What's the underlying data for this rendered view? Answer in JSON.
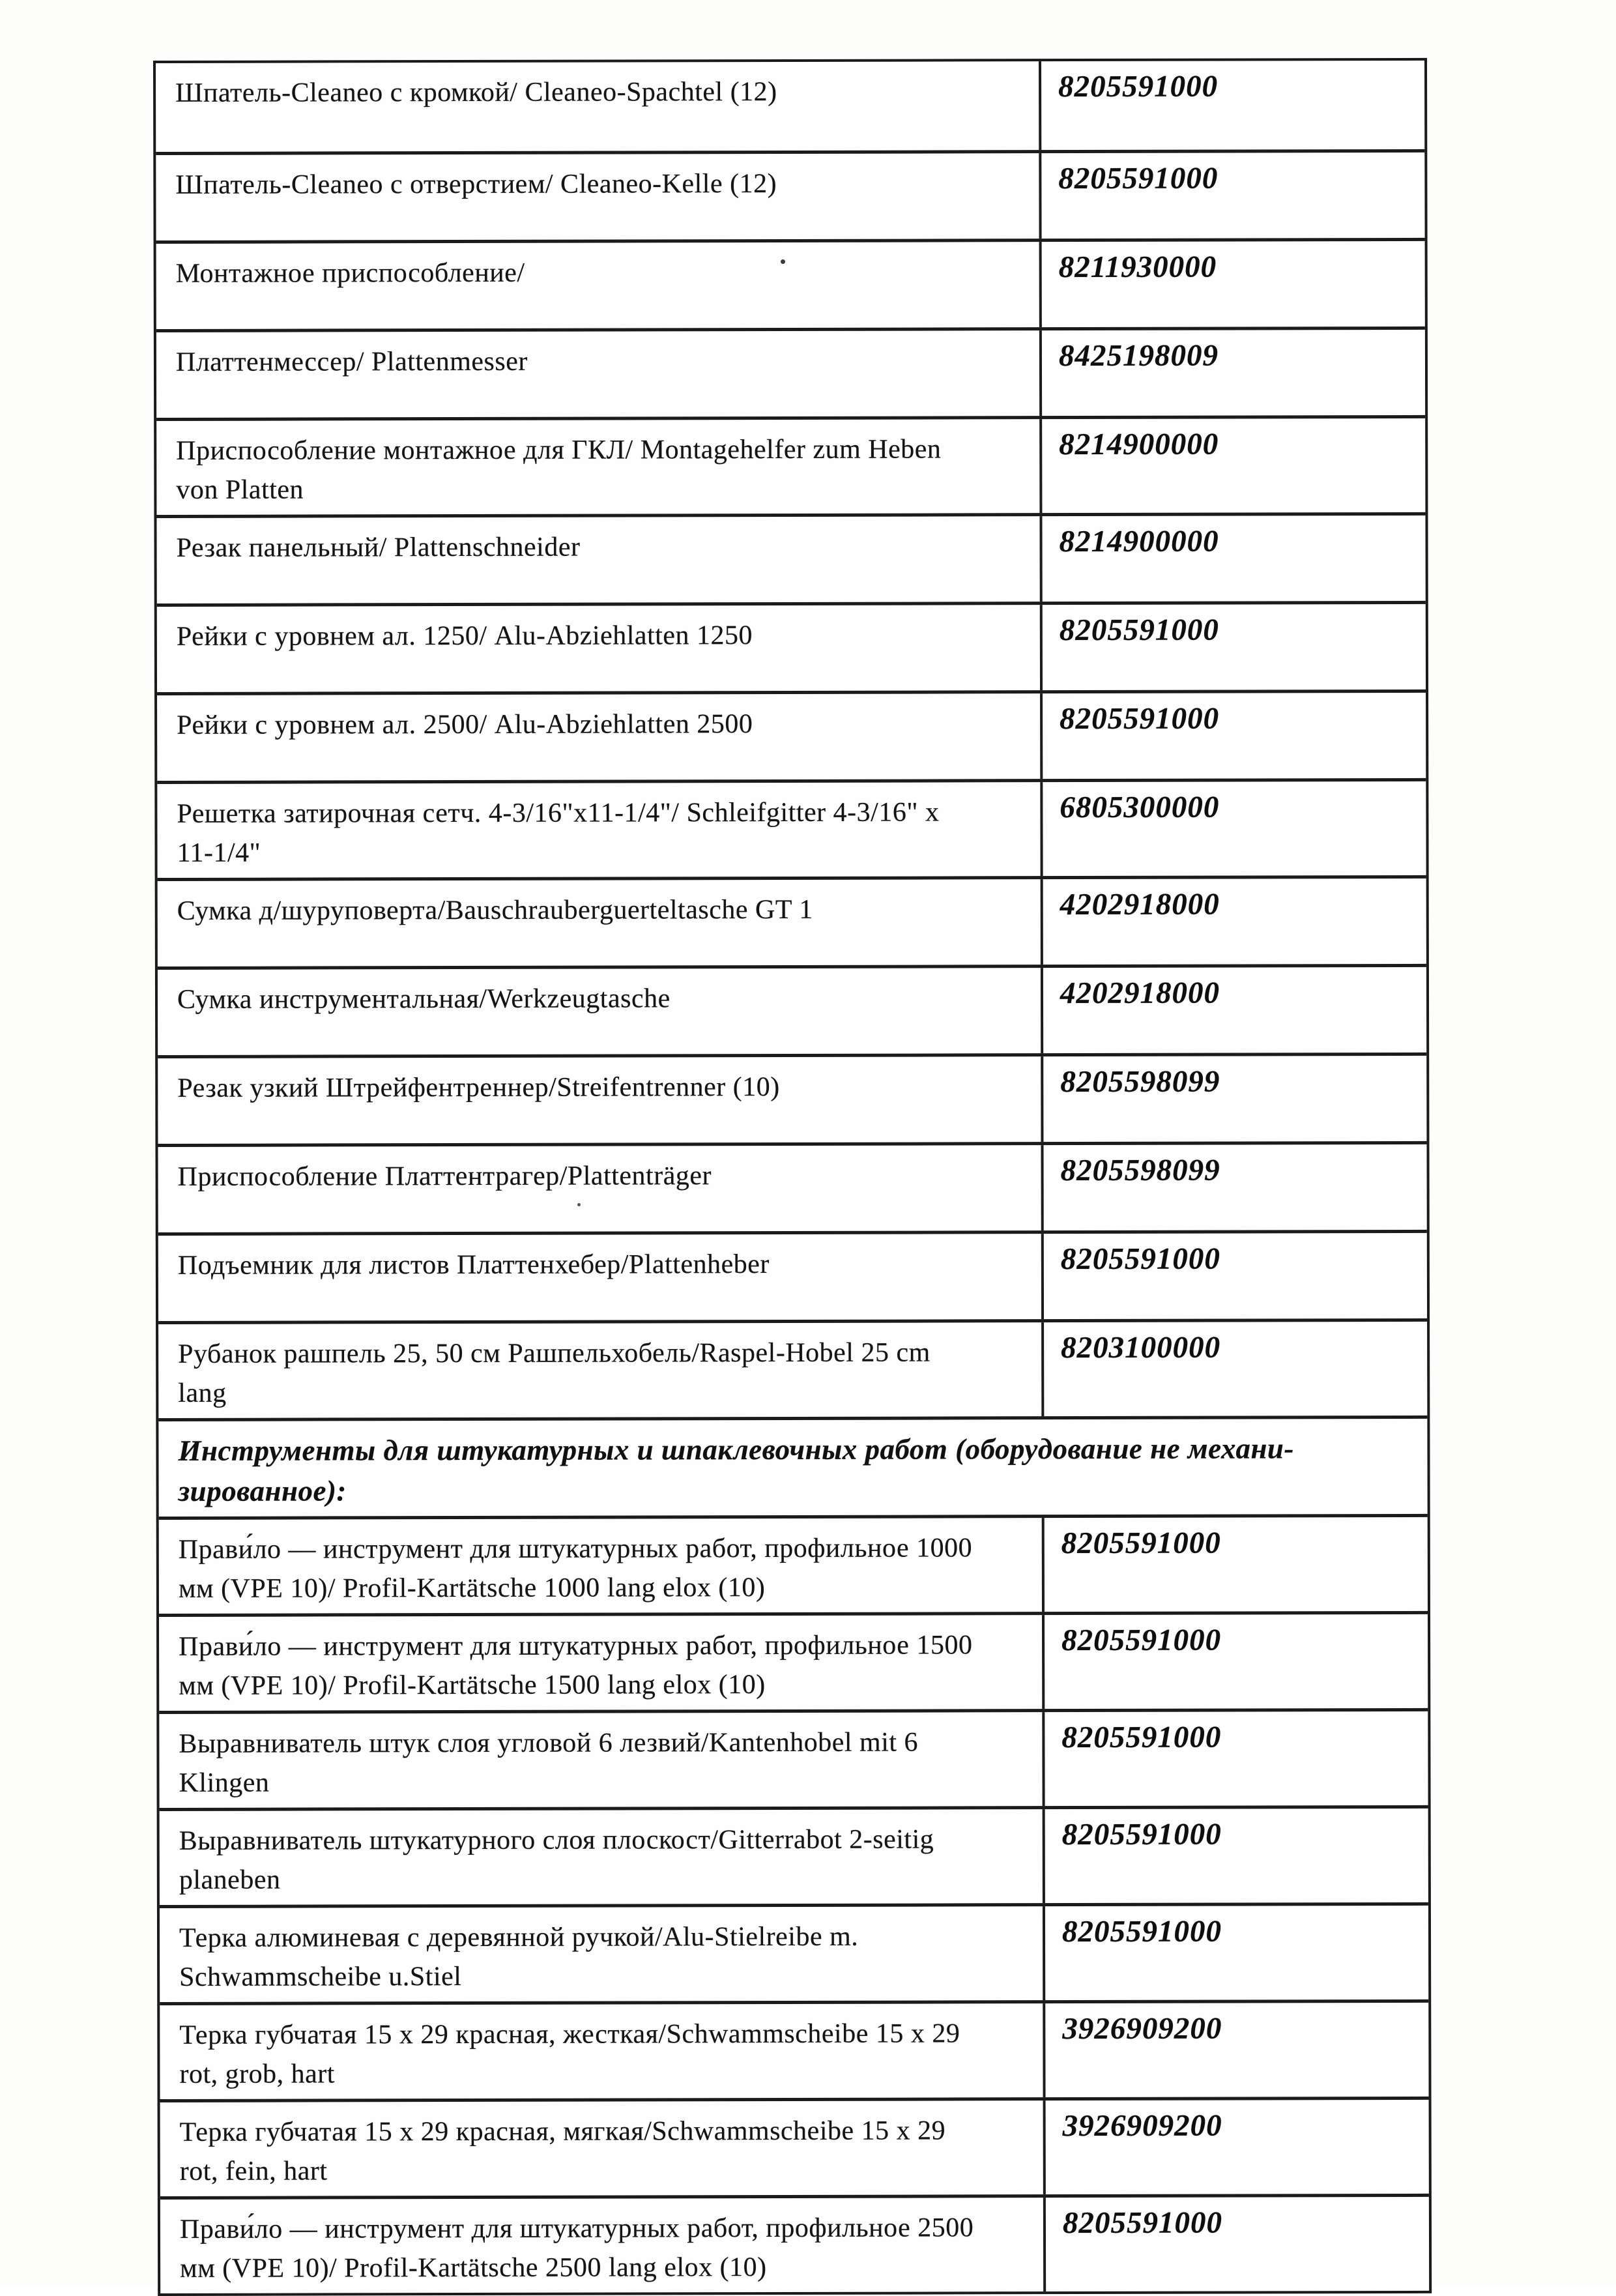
{
  "ink_color": "#1b1b1b",
  "paper_color": "#fdfdfc",
  "table": {
    "columns": [
      "description",
      "code"
    ],
    "rows": [
      {
        "kind": "item",
        "description": "Шпатель-Cleaneo с кромкой/ Cleaneo-Spachtel (12)",
        "code": "8205591000"
      },
      {
        "kind": "item",
        "description": "Шпатель-Cleaneo с отверстием/ Cleaneo-Kelle (12)",
        "code": "8205591000"
      },
      {
        "kind": "item",
        "description": "Монтажное приспособление/",
        "code": "8211930000"
      },
      {
        "kind": "item",
        "description": "Платтенмессер/ Plattenmesser",
        "code": "8425198009"
      },
      {
        "kind": "item",
        "description": "Приспособление монтажное для ГКЛ/ Montagehelfer zum Heben\nvon Platten",
        "code": "8214900000"
      },
      {
        "kind": "item",
        "description": "Резак панельный/ Plattenschneider",
        "code": "8214900000"
      },
      {
        "kind": "item",
        "description": "Рейки с уровнем ал. 1250/ Alu-Abziehlatten 1250",
        "code": "8205591000"
      },
      {
        "kind": "item",
        "description": "Рейки с уровнем ал. 2500/ Alu-Abziehlatten 2500",
        "code": "8205591000"
      },
      {
        "kind": "item",
        "description": "Решетка затирочная сетч. 4-3/16\"x11-1/4\"/ Schleifgitter 4-3/16\" x\n11-1/4\"",
        "code": "6805300000"
      },
      {
        "kind": "item",
        "description": "Сумка д/шуруповерта/Bauschrauberguerteltasche GT 1",
        "code": "4202918000"
      },
      {
        "kind": "item",
        "description": "Сумка инструментальная/Werkzeugtasche",
        "code": "4202918000"
      },
      {
        "kind": "item",
        "description": "Резак узкий Штрейфентреннер/Streifentrenner (10)",
        "code": "8205598099"
      },
      {
        "kind": "item",
        "description": "Приспособление Платтентрагер/Plattenträger",
        "code": "8205598099"
      },
      {
        "kind": "item",
        "description": "Подъемник для листов Платтенхебер/Plattenheber",
        "code": "8205591000"
      },
      {
        "kind": "item",
        "description": "Рубанок рашпель 25, 50 см Рашпельхобель/Raspel-Hobel 25 cm\nlang",
        "code": "8203100000"
      },
      {
        "kind": "section",
        "title": "Инструменты для штукатурных и шпаклевочных работ (оборудование не механи-\nзированное):"
      },
      {
        "kind": "item",
        "description": "Прави́ло — инструмент для штукатурных работ, профильное 1000\nмм (VPE 10)/ Profil-Kartätsche 1000 lang elox (10)",
        "code": "8205591000"
      },
      {
        "kind": "item",
        "description": "Прави́ло — инструмент для штукатурных работ, профильное 1500\nмм (VPE 10)/ Profil-Kartätsche 1500 lang elox (10)",
        "code": "8205591000"
      },
      {
        "kind": "item",
        "description": "Выравниватель штук слоя угловой 6 лезвий/Kantenhobel mit 6\nKlingen",
        "code": "8205591000"
      },
      {
        "kind": "item",
        "description": "Выравниватель штукатурного слоя плоскост/Gitterrabot 2-seitig\nplaneben",
        "code": "8205591000"
      },
      {
        "kind": "item",
        "description": "Терка алюминевая с деревянной ручкой/Alu-Stielreibe m.\nSchwammscheibe u.Stiel",
        "code": "8205591000"
      },
      {
        "kind": "item",
        "description": "Терка губчатая 15 х 29 красная, жесткая/Schwammscheibe 15 х 29\nrot, grob, hart",
        "code": "3926909200"
      },
      {
        "kind": "item",
        "description": "Терка губчатая 15 х 29 красная, мягкая/Schwammscheibe 15 х 29\nrot, fein, hart",
        "code": "3926909200"
      },
      {
        "kind": "item",
        "description": "Прави́ло — инструмент для штукатурных работ, профильное 2500\nмм (VPE 10)/ Profil-Kartätsche 2500 lang elox (10)",
        "code": "8205591000"
      }
    ]
  }
}
